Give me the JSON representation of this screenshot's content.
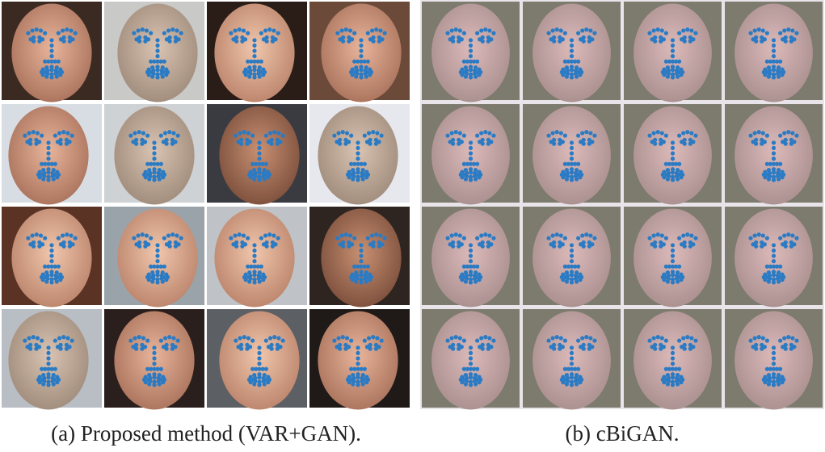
{
  "figure": {
    "subfigures": [
      {
        "caption": "(a) Proposed method (VAR+GAN)."
      },
      {
        "caption": "(b) cBiGAN."
      }
    ]
  }
}
